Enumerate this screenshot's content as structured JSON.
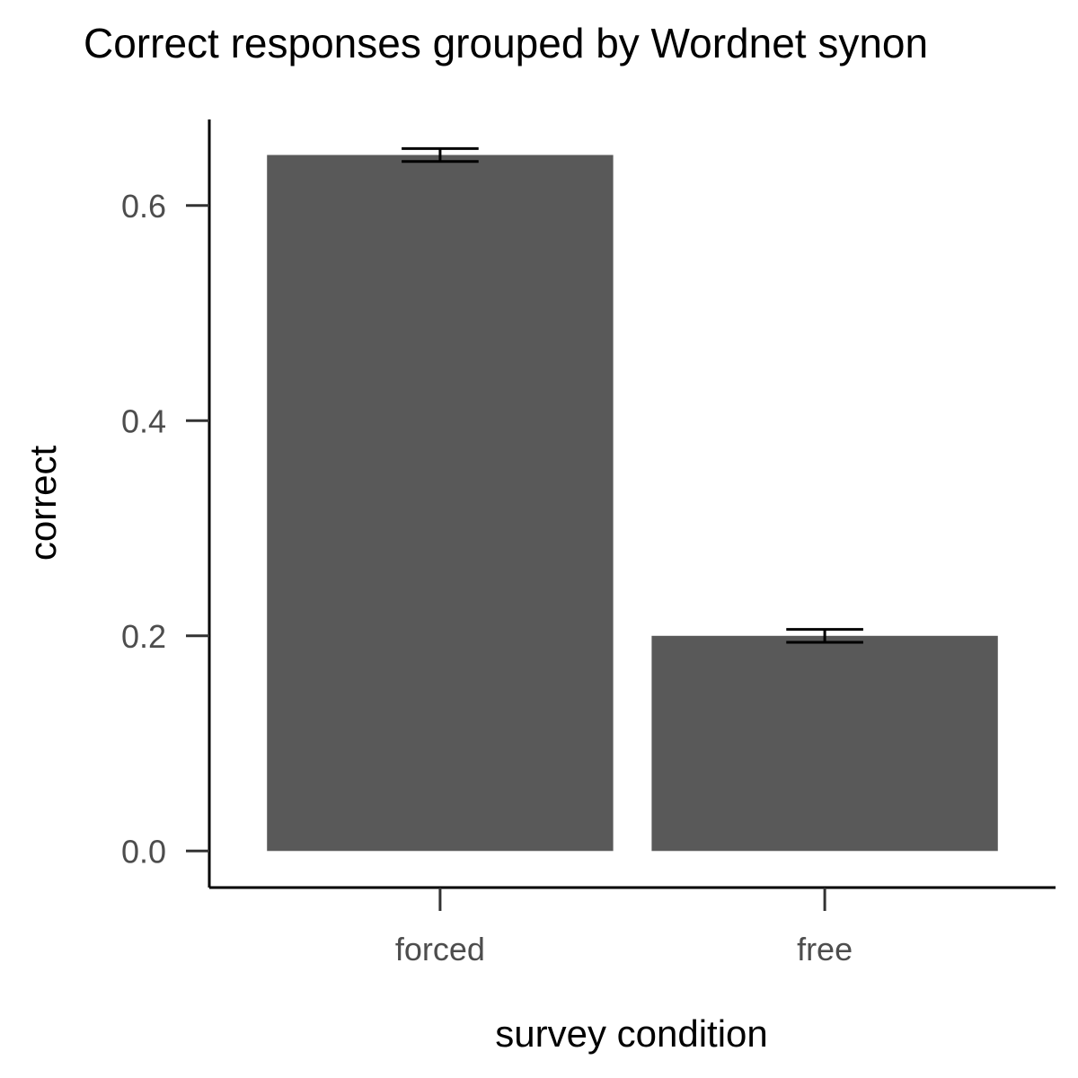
{
  "chart_data": {
    "type": "bar",
    "title": "Correct responses grouped by Wordnet synon",
    "xlabel": "survey condition",
    "ylabel": "correct",
    "categories": [
      "forced",
      "free"
    ],
    "values": [
      0.647,
      0.2
    ],
    "error": [
      0.006,
      0.006
    ],
    "ylim": [
      -0.034,
      0.68
    ],
    "yticks": [
      0.0,
      0.2,
      0.4,
      0.6
    ],
    "ytick_labels": [
      "0.0",
      "0.2",
      "0.4",
      "0.6"
    ],
    "grid": false,
    "legend": "none",
    "bar_color": "#595959",
    "errorbar_color": "#000000"
  }
}
